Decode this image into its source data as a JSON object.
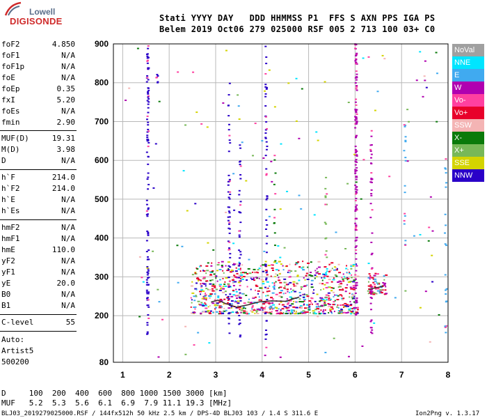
{
  "logo": {
    "line1": "Lowell",
    "line2": "DIGISONDE"
  },
  "header": {
    "line1": "Stati YYYY DAY   DDD HHMMSS P1  FFS S AXN PPS IGA PS",
    "line2": "Belem 2019 Oct06 279 025000 RSF 005 2 713 100 03+ C0"
  },
  "params": [
    {
      "label": "foF2",
      "value": "4.850"
    },
    {
      "label": "foF1",
      "value": "N/A"
    },
    {
      "label": "foF1p",
      "value": "N/A"
    },
    {
      "label": "foE",
      "value": "N/A"
    },
    {
      "label": "foEp",
      "value": "0.35"
    },
    {
      "label": "fxI",
      "value": "5.20"
    },
    {
      "label": "foEs",
      "value": "N/A"
    },
    {
      "label": "fmin",
      "value": "2.90"
    },
    {
      "label": "MUF(D)",
      "value": "19.31"
    },
    {
      "label": "M(D)",
      "value": "3.98"
    },
    {
      "label": "D",
      "value": "N/A"
    },
    {
      "label": "h`F",
      "value": "214.0"
    },
    {
      "label": "h`F2",
      "value": "214.0"
    },
    {
      "label": "h`E",
      "value": "N/A"
    },
    {
      "label": "h`Es",
      "value": "N/A"
    },
    {
      "label": "hmF2",
      "value": "N/A"
    },
    {
      "label": "hmF1",
      "value": "N/A"
    },
    {
      "label": "hmE",
      "value": "110.0"
    },
    {
      "label": "yF2",
      "value": "N/A"
    },
    {
      "label": "yF1",
      "value": "N/A"
    },
    {
      "label": "yE",
      "value": "20.0"
    },
    {
      "label": "B0",
      "value": "N/A"
    },
    {
      "label": "B1",
      "value": "N/A"
    },
    {
      "label": "C-level",
      "value": "55"
    }
  ],
  "auto": {
    "line1": "Auto:",
    "line2": "Artist5",
    "line3": "500200"
  },
  "legend": [
    {
      "label": "NoVal",
      "color": "#a0a0a0"
    },
    {
      "label": "NNE",
      "color": "#00e5ff"
    },
    {
      "label": "E",
      "color": "#40aaf0"
    },
    {
      "label": "W",
      "color": "#b000b0"
    },
    {
      "label": "Vo-",
      "color": "#ff40a0"
    },
    {
      "label": "Vo+",
      "color": "#e8002a"
    },
    {
      "label": "SSW",
      "color": "#f4b4b4"
    },
    {
      "label": "X-",
      "color": "#0a7a0a"
    },
    {
      "label": "X+",
      "color": "#78b858"
    },
    {
      "label": "SSE",
      "color": "#d4d400"
    },
    {
      "label": "NNW",
      "color": "#2a00c8"
    }
  ],
  "footer": {
    "dline": "D     100  200  400  600  800 1000 1500 3000 [km]",
    "mufline": "MUF   5.2  5.3  5.6  6.1  6.9  7.9 11.1 19.3 [MHz]",
    "file": "BLJ03_2019279025000.RSF / 144fx512h 50 kHz 2.5 km / DPS-4D BLJ03 103 / 1.4 S 311.6 E",
    "version": "Ion2Png v. 1.3.17"
  },
  "chart_data": {
    "type": "scatter",
    "xlim": [
      0.8,
      8.0
    ],
    "ylim": [
      80,
      900
    ],
    "xticks": [
      1,
      2,
      3,
      4,
      5,
      6,
      7,
      8
    ],
    "yticks": [
      80,
      200,
      300,
      400,
      500,
      600,
      700,
      800,
      900
    ],
    "grid": true,
    "trace": [
      {
        "x": 2.9,
        "y": 235
      },
      {
        "x": 3.05,
        "y": 240
      },
      {
        "x": 3.2,
        "y": 232
      },
      {
        "x": 3.45,
        "y": 222
      },
      {
        "x": 3.7,
        "y": 228
      },
      {
        "x": 3.95,
        "y": 236
      },
      {
        "x": 4.2,
        "y": 238
      },
      {
        "x": 4.5,
        "y": 237
      },
      {
        "x": 4.8,
        "y": 248
      }
    ],
    "trace2": [
      {
        "x": 6.3,
        "y": 268
      },
      {
        "x": 6.45,
        "y": 272
      },
      {
        "x": 6.6,
        "y": 275
      }
    ],
    "echo_regions": [
      {
        "x0": 2.45,
        "x1": 6.05,
        "y0": 205,
        "y1": 340,
        "n": 900,
        "mix": [
          "Vo+",
          "Vo+",
          "Vo+",
          "E",
          "X+",
          "Vo-",
          "W",
          "NNE",
          "SSW",
          "X-",
          "SSE",
          "NNW"
        ]
      },
      {
        "x0": 6.25,
        "x1": 6.65,
        "y0": 255,
        "y1": 310,
        "n": 70,
        "mix": [
          "Vo+",
          "Vo+",
          "W",
          "X+",
          "E",
          "Vo-"
        ]
      }
    ],
    "echo_columns": [
      {
        "x": 1.52,
        "y0": 150,
        "y1": 895,
        "n": 110,
        "color": "NNW"
      },
      {
        "x": 1.72,
        "y0": 800,
        "y1": 830,
        "n": 6,
        "color": "NNW"
      },
      {
        "x": 3.27,
        "y0": 150,
        "y1": 800,
        "n": 60,
        "color": "NNW"
      },
      {
        "x": 3.5,
        "y0": 130,
        "y1": 650,
        "n": 40,
        "color": "NNW"
      },
      {
        "x": 4.07,
        "y0": 100,
        "y1": 895,
        "n": 55,
        "color": "NNW"
      },
      {
        "x": 6.0,
        "y0": 200,
        "y1": 900,
        "n": 140,
        "color": "W"
      },
      {
        "x": 6.33,
        "y0": 150,
        "y1": 680,
        "n": 45,
        "color": "W"
      },
      {
        "x": 7.05,
        "y0": 380,
        "y1": 720,
        "n": 18,
        "color": "E"
      },
      {
        "x": 7.93,
        "y0": 90,
        "y1": 610,
        "n": 22,
        "color": "E"
      },
      {
        "x": 5.35,
        "y0": 340,
        "y1": 560,
        "n": 14,
        "color": "X+"
      },
      {
        "x": 4.25,
        "y0": 340,
        "y1": 620,
        "n": 12,
        "color": "X-"
      }
    ],
    "scatter_counts": {
      "sparse": 140
    }
  }
}
